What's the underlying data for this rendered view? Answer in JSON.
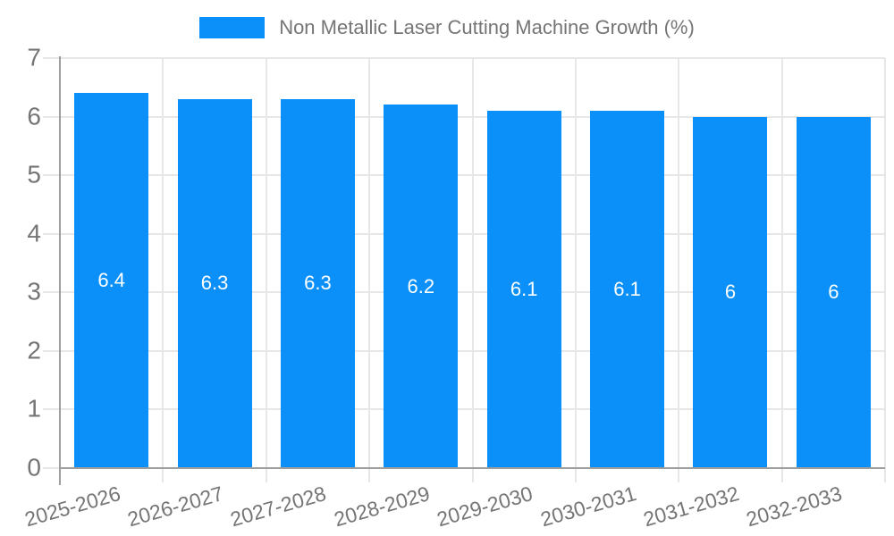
{
  "legend": {
    "label": "Non Metallic Laser Cutting Machine Growth (%)"
  },
  "chart_data": {
    "type": "bar",
    "title": "Non Metallic Laser Cutting Machine Growth (%)",
    "categories": [
      "2025-2026",
      "2026-2027",
      "2027-2028",
      "2028-2029",
      "2029-2030",
      "2030-2031",
      "2031-2032",
      "2032-2033"
    ],
    "series": [
      {
        "name": "Non Metallic Laser Cutting Machine Growth (%)",
        "values": [
          6.4,
          6.3,
          6.3,
          6.2,
          6.1,
          6.1,
          6,
          6
        ]
      }
    ],
    "values": [
      6.4,
      6.3,
      6.3,
      6.2,
      6.1,
      6.1,
      6,
      6
    ],
    "value_labels": [
      "6.4",
      "6.3",
      "6.3",
      "6.2",
      "6.1",
      "6.1",
      "6",
      "6"
    ],
    "xlabel": "",
    "ylabel": "",
    "ylim": [
      0,
      7
    ],
    "yticks": [
      0,
      1,
      2,
      3,
      4,
      5,
      6,
      7
    ],
    "grid": true,
    "legend_position": "top",
    "colors": {
      "bar": "#0a90f8",
      "grid": "#e7e7e7",
      "axis": "#9e9e9e",
      "label": "#757575",
      "data_label": "#ffffff"
    }
  }
}
